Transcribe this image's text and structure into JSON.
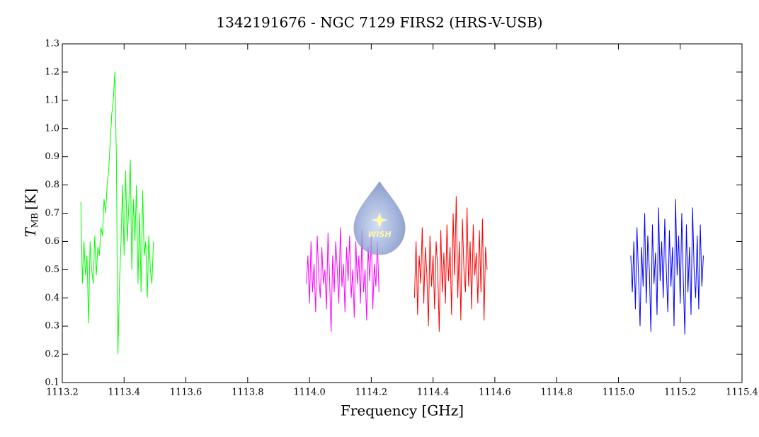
{
  "chart_data": {
    "type": "line",
    "title": "1342191676 - NGC 7129 FIRS2 (HRS-V-USB)",
    "xlabel": "Frequency [GHz]",
    "ylabel": {
      "symbol": "T",
      "subscript": "MB",
      "unit": "[K]"
    },
    "logo_text": "WISH",
    "xlim": [
      1113.2,
      1115.4
    ],
    "xticks": [
      1113.2,
      1113.4,
      1113.6,
      1113.8,
      {
        "value": 1114.0,
        "label": "1114.0"
      },
      1114.2,
      1114.4,
      1114.6,
      1114.8,
      {
        "value": 1115.0,
        "label": "1115.0"
      },
      1115.2,
      1115.4
    ],
    "ylim": [
      0.1,
      1.3
    ],
    "yticks": [
      0.1,
      0.2,
      0.3,
      0.4,
      0.5,
      0.6,
      0.7,
      0.8,
      0.9,
      {
        "value": 1.0,
        "label": "1.0"
      },
      1.1,
      1.2,
      1.3
    ],
    "series": [
      {
        "color": "#00ff00",
        "x": [
          1113.26,
          1113.265,
          1113.27,
          1113.275,
          1113.28,
          1113.285,
          1113.29,
          1113.295,
          1113.3,
          1113.305,
          1113.31,
          1113.315,
          1113.32,
          1113.325,
          1113.33,
          1113.335,
          1113.34,
          1113.345,
          1113.35,
          1113.355,
          1113.36,
          1113.365,
          1113.37,
          1113.375,
          1113.38,
          1113.385,
          1113.39,
          1113.395,
          1113.4,
          1113.405,
          1113.41,
          1113.415,
          1113.42,
          1113.425,
          1113.43,
          1113.435,
          1113.44,
          1113.445,
          1113.45,
          1113.455,
          1113.46,
          1113.465,
          1113.47,
          1113.475,
          1113.48,
          1113.485,
          1113.49,
          1113.495
        ],
        "values": [
          0.74,
          0.45,
          0.6,
          0.48,
          0.55,
          0.31,
          0.6,
          0.5,
          0.45,
          0.62,
          0.48,
          0.58,
          0.55,
          0.65,
          0.62,
          0.75,
          0.7,
          0.8,
          0.85,
          0.95,
          1.05,
          1.1,
          1.2,
          0.9,
          0.2,
          0.45,
          0.6,
          0.8,
          0.55,
          0.85,
          0.6,
          0.72,
          0.89,
          0.5,
          0.75,
          0.6,
          0.8,
          0.45,
          0.7,
          0.42,
          0.78,
          0.55,
          0.6,
          0.4,
          0.62,
          0.5,
          0.45,
          0.6
        ]
      },
      {
        "color": "#ff00ff",
        "x": [
          1113.99,
          1113.995,
          1114,
          1114.005,
          1114.01,
          1114.015,
          1114.02,
          1114.025,
          1114.03,
          1114.035,
          1114.04,
          1114.045,
          1114.05,
          1114.055,
          1114.06,
          1114.065,
          1114.07,
          1114.075,
          1114.08,
          1114.085,
          1114.09,
          1114.095,
          1114.1,
          1114.105,
          1114.11,
          1114.115,
          1114.12,
          1114.125,
          1114.13,
          1114.135,
          1114.14,
          1114.145,
          1114.15,
          1114.155,
          1114.16,
          1114.165,
          1114.17,
          1114.175,
          1114.18,
          1114.185,
          1114.19,
          1114.195,
          1114.2,
          1114.205,
          1114.21,
          1114.215,
          1114.22,
          1114.225
        ],
        "values": [
          0.45,
          0.55,
          0.38,
          0.6,
          0.42,
          0.52,
          0.35,
          0.62,
          0.48,
          0.4,
          0.58,
          0.45,
          0.5,
          0.36,
          0.63,
          0.47,
          0.28,
          0.55,
          0.42,
          0.6,
          0.5,
          0.38,
          0.65,
          0.44,
          0.52,
          0.35,
          0.58,
          0.46,
          0.62,
          0.4,
          0.5,
          0.33,
          0.6,
          0.45,
          0.55,
          0.38,
          0.64,
          0.42,
          0.5,
          0.32,
          0.58,
          0.46,
          0.62,
          0.36,
          0.52,
          0.44,
          0.6,
          0.42
        ]
      },
      {
        "color": "#ff0000",
        "x": [
          1114.34,
          1114.345,
          1114.35,
          1114.355,
          1114.36,
          1114.365,
          1114.37,
          1114.375,
          1114.38,
          1114.385,
          1114.39,
          1114.395,
          1114.4,
          1114.405,
          1114.41,
          1114.415,
          1114.42,
          1114.425,
          1114.43,
          1114.435,
          1114.44,
          1114.445,
          1114.45,
          1114.455,
          1114.46,
          1114.465,
          1114.47,
          1114.475,
          1114.48,
          1114.485,
          1114.49,
          1114.495,
          1114.5,
          1114.505,
          1114.51,
          1114.515,
          1114.52,
          1114.525,
          1114.53,
          1114.535,
          1114.54,
          1114.545,
          1114.55,
          1114.555,
          1114.56,
          1114.565,
          1114.57,
          1114.575
        ],
        "values": [
          0.4,
          0.6,
          0.34,
          0.55,
          0.45,
          0.65,
          0.38,
          0.58,
          0.48,
          0.3,
          0.62,
          0.44,
          0.55,
          0.36,
          0.6,
          0.5,
          0.28,
          0.64,
          0.42,
          0.56,
          0.38,
          0.66,
          0.46,
          0.58,
          0.34,
          0.7,
          0.48,
          0.76,
          0.4,
          0.6,
          0.32,
          0.68,
          0.5,
          0.42,
          0.72,
          0.44,
          0.6,
          0.36,
          0.66,
          0.48,
          0.56,
          0.38,
          0.64,
          0.42,
          0.68,
          0.32,
          0.58,
          0.5
        ]
      },
      {
        "color": "#0000ff",
        "x": [
          1115.04,
          1115.045,
          1115.05,
          1115.055,
          1115.06,
          1115.065,
          1115.07,
          1115.075,
          1115.08,
          1115.085,
          1115.09,
          1115.095,
          1115.1,
          1115.105,
          1115.11,
          1115.115,
          1115.12,
          1115.125,
          1115.13,
          1115.135,
          1115.14,
          1115.145,
          1115.15,
          1115.155,
          1115.16,
          1115.165,
          1115.17,
          1115.175,
          1115.18,
          1115.185,
          1115.19,
          1115.195,
          1115.2,
          1115.205,
          1115.21,
          1115.215,
          1115.22,
          1115.225,
          1115.23,
          1115.235,
          1115.24,
          1115.245,
          1115.25,
          1115.255,
          1115.26,
          1115.265,
          1115.27,
          1115.275
        ],
        "values": [
          0.55,
          0.42,
          0.6,
          0.36,
          0.65,
          0.48,
          0.3,
          0.58,
          0.44,
          0.7,
          0.38,
          0.62,
          0.5,
          0.28,
          0.66,
          0.45,
          0.56,
          0.34,
          0.72,
          0.46,
          0.6,
          0.4,
          0.68,
          0.5,
          0.35,
          0.64,
          0.44,
          0.58,
          0.3,
          0.75,
          0.48,
          0.62,
          0.38,
          0.7,
          0.46,
          0.27,
          0.66,
          0.42,
          0.58,
          0.34,
          0.72,
          0.5,
          0.4,
          0.62,
          0.36,
          0.66,
          0.44,
          0.55
        ]
      }
    ]
  }
}
